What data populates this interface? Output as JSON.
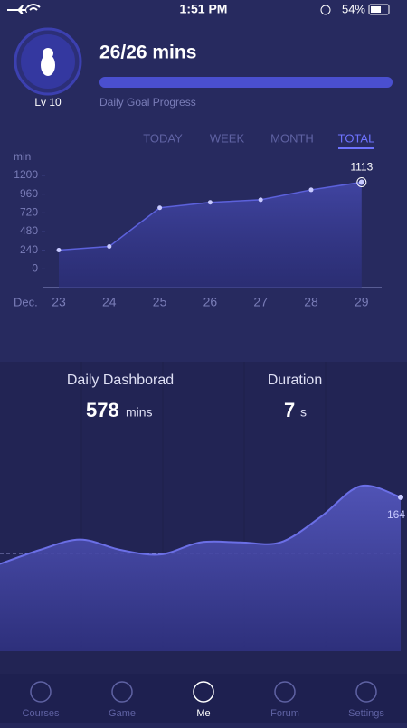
{
  "status_bar": {
    "time": "1:51 PM",
    "battery": "54%"
  },
  "profile": {
    "level": "Lv 10",
    "progress_text": "26/26 mins",
    "progress_label": "Daily Goal Progress",
    "progress_done": 26,
    "progress_goal": 26
  },
  "tabs": [
    "TODAY",
    "WEEK",
    "MONTH",
    "TOTAL"
  ],
  "selected_tab": "TOTAL",
  "chart_data": {
    "type": "line",
    "y_label": "min",
    "x_label": "Dec.",
    "categories": [
      "23",
      "24",
      "25",
      "26",
      "27",
      "28",
      "29"
    ],
    "values": [
      242,
      288,
      785,
      854,
      888,
      1015,
      1113
    ],
    "value_labels": [
      null,
      null,
      null,
      null,
      null,
      null,
      "1113"
    ],
    "color": "#5c61db",
    "ylim": [
      -240,
      1200
    ],
    "yticks": [
      0,
      240,
      480,
      720,
      960,
      1200
    ]
  },
  "dashboard": {
    "title": "Daily Dashborad",
    "value": 578,
    "unit": "mins",
    "duration_title": "Duration",
    "duration_value": 7,
    "duration_unit": "s"
  },
  "wave_chart": {
    "type": "area",
    "values": [
      93,
      108,
      119,
      108,
      103,
      116,
      116,
      116,
      143,
      176,
      164
    ],
    "color": "#6b6fe6"
  },
  "nav": [
    "Courses",
    "Game",
    "Me",
    "Forum",
    "Settings"
  ],
  "active_nav": "Me"
}
